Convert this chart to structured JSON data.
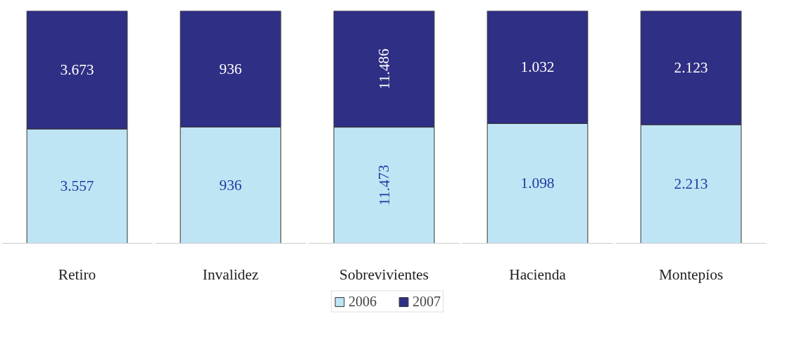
{
  "chart_data": [
    {
      "type": "bar",
      "stacked": true,
      "categories": [
        "Retiro"
      ],
      "series": [
        {
          "color": "#bfe5f5",
          "values": [
            3557
          ],
          "value_labels": [
            "3.557"
          ]
        },
        {
          "color": "#2f2f85",
          "values": [
            3673
          ],
          "value_labels": [
            "3.673"
          ]
        }
      ]
    },
    {
      "type": "bar",
      "stacked": true,
      "categories": [
        "Invalidez"
      ],
      "series": [
        {
          "color": "#bfe5f5",
          "values": [
            936
          ],
          "value_labels": [
            "936"
          ]
        },
        {
          "color": "#2f2f85",
          "values": [
            936
          ],
          "value_labels": [
            "936"
          ]
        }
      ]
    },
    {
      "type": "bar",
      "stacked": true,
      "categories": [
        "Sobrevivientes"
      ],
      "legend": "bottom",
      "series": [
        {
          "name": "2006",
          "color": "#bfe5f5",
          "values": [
            11473
          ],
          "value_labels": [
            "11.473"
          ]
        },
        {
          "name": "2007",
          "color": "#2f2f85",
          "values": [
            11486
          ],
          "value_labels": [
            "11.486"
          ]
        }
      ]
    },
    {
      "type": "bar",
      "stacked": true,
      "categories": [
        "Hacienda"
      ],
      "series": [
        {
          "color": "#bfe5f5",
          "values": [
            1098
          ],
          "value_labels": [
            "1.098"
          ]
        },
        {
          "color": "#2f2f85",
          "values": [
            1032
          ],
          "value_labels": [
            "1.032"
          ]
        }
      ]
    },
    {
      "type": "bar",
      "stacked": true,
      "categories": [
        "Montepíos"
      ],
      "series": [
        {
          "color": "#bfe5f5",
          "values": [
            2213
          ],
          "value_labels": [
            "2.213"
          ]
        },
        {
          "color": "#2f2f85",
          "values": [
            2123
          ],
          "value_labels": [
            "2.123"
          ]
        }
      ]
    }
  ]
}
